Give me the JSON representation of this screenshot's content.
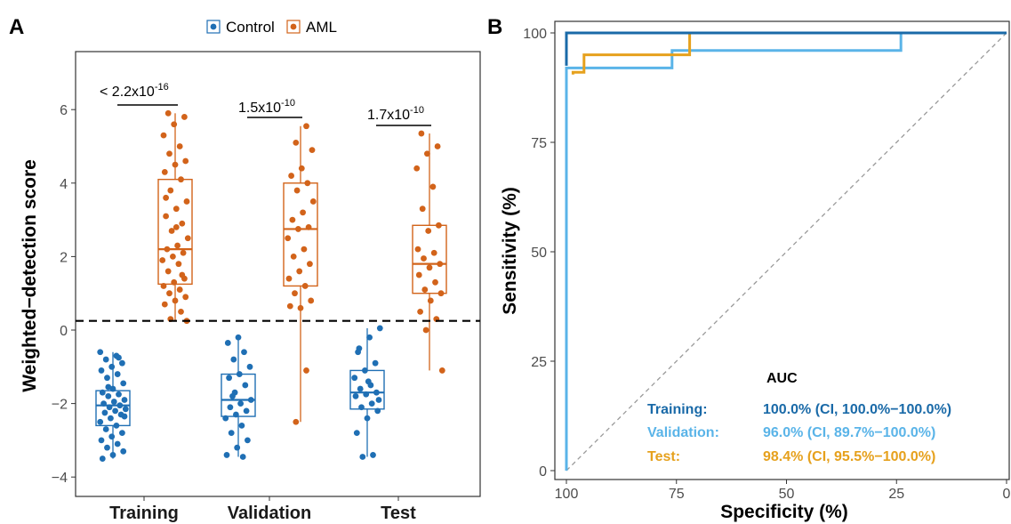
{
  "colors": {
    "control": "#1f6fb4",
    "aml": "#d2631a",
    "training": "#1a6aa8",
    "validation": "#5ab4e8",
    "test": "#e6a11d"
  },
  "panel_a": {
    "label": "A",
    "legend": [
      "Control",
      "AML"
    ],
    "ylabel": "Weighted−detection score",
    "pvalues": [
      {
        "pre": "< 2.2x10",
        "exp": "-16"
      },
      {
        "pre": "1.5x10",
        "exp": "-10"
      },
      {
        "pre": "1.7x10",
        "exp": "-10"
      }
    ]
  },
  "panel_b": {
    "label": "B",
    "xlabel": "Specificity (%)",
    "ylabel": "Sensitivity (%)",
    "auc_title": "AUC",
    "auc_rows": [
      {
        "name": "Training:",
        "value": "100.0% (CI, 100.0%−100.0%)"
      },
      {
        "name": "Validation:",
        "value": "96.0% (CI, 89.7%−100.0%)"
      },
      {
        "name": "Test:",
        "value": "98.4% (CI, 95.5%−100.0%)"
      }
    ]
  },
  "chart_data": [
    {
      "type": "box",
      "categories": [
        "Training",
        "Validation",
        "Test"
      ],
      "ylabel": "Weighted−detection score",
      "ylim": [
        -4.5,
        7.5
      ],
      "yticks": [
        -4,
        -2,
        0,
        2,
        4,
        6
      ],
      "threshold": 0.25,
      "grid": false,
      "legend_position": "top",
      "series": [
        {
          "name": "Control",
          "boxes": [
            {
              "min": -3.5,
              "q1": -2.6,
              "median": -2.05,
              "q3": -1.65,
              "max": -0.6
            },
            {
              "min": -3.45,
              "q1": -2.35,
              "median": -1.9,
              "q3": -1.2,
              "max": -0.2
            },
            {
              "min": -3.45,
              "q1": -2.15,
              "median": -1.7,
              "q3": -1.1,
              "max": 0.05
            }
          ]
        },
        {
          "name": "AML",
          "boxes": [
            {
              "min": 0.25,
              "q1": 1.25,
              "median": 2.2,
              "q3": 4.1,
              "max": 5.9
            },
            {
              "min": -2.5,
              "q1": 1.2,
              "median": 2.75,
              "q3": 4.0,
              "max": 5.55
            },
            {
              "min": -1.1,
              "q1": 1.0,
              "median": 1.8,
              "q3": 2.85,
              "max": 5.35
            }
          ]
        }
      ],
      "points": {
        "Control": [
          [
            -0.6,
            -0.7,
            -0.8,
            -0.9,
            -1.0,
            -1.1,
            -1.2,
            -1.3,
            -1.45,
            -1.6,
            -1.7,
            -1.75,
            -1.8,
            -1.9,
            -1.95,
            -2.0,
            -2.05,
            -2.1,
            -2.15,
            -2.2,
            -2.25,
            -2.3,
            -2.4,
            -2.5,
            -2.6,
            -2.7,
            -2.8,
            -2.9,
            -3.0,
            -3.1,
            -3.2,
            -3.3,
            -3.4,
            -3.5,
            -0.75,
            -1.55,
            -2.35
          ],
          [
            -0.2,
            -0.35,
            -0.6,
            -0.8,
            -1.0,
            -1.2,
            -1.3,
            -1.5,
            -1.7,
            -1.9,
            -2.0,
            -2.1,
            -2.2,
            -2.3,
            -2.4,
            -2.6,
            -2.8,
            -3.0,
            -3.2,
            -3.4,
            -3.45,
            -1.8
          ],
          [
            0.05,
            -0.2,
            -0.5,
            -0.9,
            -1.1,
            -1.3,
            -1.5,
            -1.6,
            -1.7,
            -1.75,
            -1.8,
            -2.0,
            -2.1,
            -2.2,
            -2.4,
            -2.8,
            -3.4,
            -3.45,
            -1.9,
            -1.4,
            -0.6
          ]
        ],
        "AML": [
          [
            5.9,
            5.8,
            5.6,
            5.3,
            5.0,
            4.8,
            4.6,
            4.5,
            4.3,
            4.1,
            3.8,
            3.5,
            3.3,
            3.1,
            2.9,
            2.7,
            2.5,
            2.3,
            2.2,
            2.1,
            2.0,
            1.9,
            1.8,
            1.6,
            1.4,
            1.3,
            1.2,
            1.1,
            1.0,
            0.9,
            0.8,
            0.7,
            0.5,
            0.3,
            0.25,
            2.8,
            3.6,
            1.5
          ],
          [
            5.55,
            5.1,
            4.9,
            4.4,
            4.2,
            4.0,
            3.8,
            3.5,
            3.2,
            3.0,
            2.8,
            2.75,
            2.5,
            2.2,
            2.0,
            1.8,
            1.6,
            1.4,
            1.2,
            1.0,
            0.8,
            0.6,
            0.65,
            -1.1,
            -2.5
          ],
          [
            5.35,
            5.0,
            4.8,
            4.4,
            3.9,
            3.3,
            2.85,
            2.7,
            2.2,
            2.1,
            1.95,
            1.8,
            1.7,
            1.5,
            1.3,
            1.1,
            1.0,
            0.8,
            0.5,
            0.3,
            0.0,
            -1.1
          ]
        ]
      }
    },
    {
      "type": "line",
      "title": "",
      "xlabel": "Specificity (%)",
      "ylabel": "Sensitivity (%)",
      "xlim": [
        100,
        0
      ],
      "ylim": [
        0,
        100
      ],
      "xticks": [
        100,
        75,
        50,
        25,
        0
      ],
      "yticks": [
        0,
        25,
        50,
        75,
        100
      ],
      "diagonal": true,
      "grid": false,
      "series": [
        {
          "name": "Training",
          "points": [
            [
              100,
              92.5
            ],
            [
              100,
              100
            ],
            [
              72,
              100
            ],
            [
              0,
              100
            ]
          ]
        },
        {
          "name": "Validation",
          "points": [
            [
              100,
              0
            ],
            [
              100,
              92
            ],
            [
              76,
              92
            ],
            [
              76,
              96
            ],
            [
              24,
              96
            ],
            [
              24,
              100
            ],
            [
              0,
              100
            ]
          ]
        },
        {
          "name": "Test",
          "points": [
            [
              98.5,
              90.5
            ],
            [
              98.5,
              91
            ],
            [
              96,
              91
            ],
            [
              96,
              95
            ],
            [
              72,
              95
            ],
            [
              72,
              100
            ],
            [
              0,
              100
            ]
          ]
        }
      ]
    }
  ]
}
